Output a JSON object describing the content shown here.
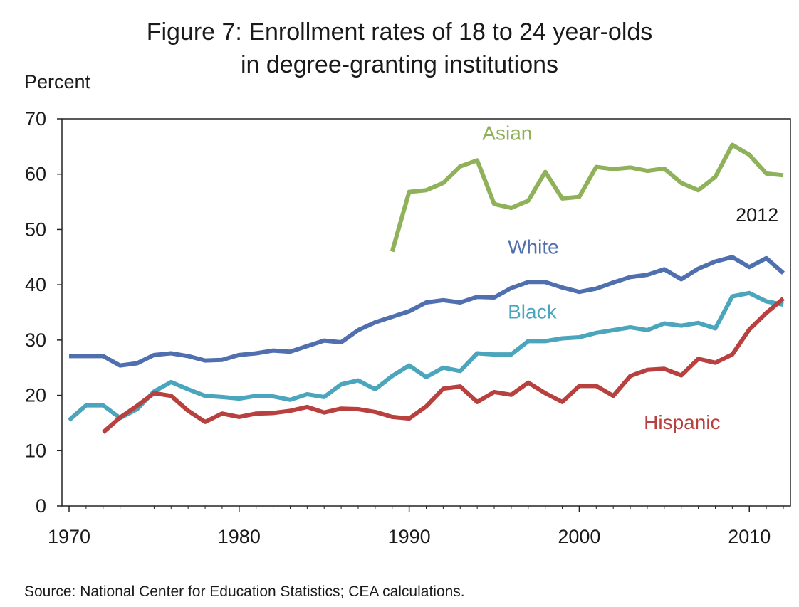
{
  "chart_data": {
    "type": "line",
    "title": "Figure 7: Enrollment rates of 18 to 24 year-olds",
    "title_line2": "in degree-granting institutions",
    "ylabel": "Percent",
    "xlabel": "",
    "ylim": [
      0,
      70
    ],
    "xlim": [
      1970,
      2012
    ],
    "y_ticks": [
      "0",
      "10",
      "20",
      "30",
      "40",
      "50",
      "60",
      "70"
    ],
    "x_ticks": [
      "1970",
      "1980",
      "1990",
      "2000",
      "2010"
    ],
    "grid": false,
    "end_annotation": "2012",
    "source": "Source: National Center for Education Statistics; CEA calculations.",
    "series": [
      {
        "name": "White",
        "color": "#4f6faf",
        "x": [
          1970,
          1971,
          1972,
          1973,
          1974,
          1975,
          1976,
          1977,
          1978,
          1979,
          1980,
          1981,
          1982,
          1983,
          1984,
          1985,
          1986,
          1987,
          1988,
          1989,
          1990,
          1991,
          1992,
          1993,
          1994,
          1995,
          1996,
          1997,
          1998,
          1999,
          2000,
          2001,
          2002,
          2003,
          2004,
          2005,
          2006,
          2007,
          2008,
          2009,
          2010,
          2011,
          2012
        ],
        "values": [
          27.1,
          27.1,
          27.1,
          25.4,
          25.8,
          27.3,
          27.6,
          27.1,
          26.3,
          26.4,
          27.3,
          27.6,
          28.1,
          27.9,
          28.9,
          29.9,
          29.6,
          31.8,
          33.2,
          34.2,
          35.2,
          36.8,
          37.2,
          36.8,
          37.8,
          37.7,
          39.4,
          40.5,
          40.5,
          39.5,
          38.7,
          39.3,
          40.4,
          41.4,
          41.8,
          42.8,
          41.0,
          42.9,
          44.2,
          45.0,
          43.2,
          44.8,
          42.1
        ]
      },
      {
        "name": "Black",
        "color": "#4aa5bd",
        "x": [
          1970,
          1971,
          1972,
          1973,
          1974,
          1975,
          1976,
          1977,
          1978,
          1979,
          1980,
          1981,
          1982,
          1983,
          1984,
          1985,
          1986,
          1987,
          1988,
          1989,
          1990,
          1991,
          1992,
          1993,
          1994,
          1995,
          1996,
          1997,
          1998,
          1999,
          2000,
          2001,
          2002,
          2003,
          2004,
          2005,
          2006,
          2007,
          2008,
          2009,
          2010,
          2011,
          2012
        ],
        "values": [
          15.5,
          18.2,
          18.2,
          15.9,
          17.5,
          20.7,
          22.4,
          21.1,
          19.9,
          19.7,
          19.4,
          19.9,
          19.8,
          19.2,
          20.2,
          19.7,
          22.0,
          22.7,
          21.1,
          23.5,
          25.4,
          23.3,
          25.0,
          24.4,
          27.6,
          27.4,
          27.4,
          29.8,
          29.8,
          30.3,
          30.5,
          31.3,
          31.8,
          32.3,
          31.8,
          33.0,
          32.6,
          33.1,
          32.1,
          37.9,
          38.5,
          37.0,
          36.4
        ]
      },
      {
        "name": "Hispanic",
        "color": "#b8403e",
        "x": [
          1972,
          1973,
          1974,
          1975,
          1976,
          1977,
          1978,
          1979,
          1980,
          1981,
          1982,
          1983,
          1984,
          1985,
          1986,
          1987,
          1988,
          1989,
          1990,
          1991,
          1992,
          1993,
          1994,
          1995,
          1996,
          1997,
          1998,
          1999,
          2000,
          2001,
          2002,
          2003,
          2004,
          2005,
          2006,
          2007,
          2008,
          2009,
          2010,
          2011,
          2012
        ],
        "values": [
          13.3,
          16.0,
          18.1,
          20.4,
          19.9,
          17.2,
          15.2,
          16.7,
          16.1,
          16.7,
          16.8,
          17.2,
          17.9,
          16.9,
          17.6,
          17.5,
          17.0,
          16.1,
          15.8,
          18.0,
          21.2,
          21.6,
          18.8,
          20.6,
          20.1,
          22.3,
          20.4,
          18.8,
          21.7,
          21.7,
          19.9,
          23.5,
          24.6,
          24.8,
          23.6,
          26.6,
          25.9,
          27.4,
          31.9,
          34.9,
          37.5
        ]
      },
      {
        "name": "Asian",
        "color": "#8fb15a",
        "x": [
          1989,
          1990,
          1991,
          1992,
          1993,
          1994,
          1995,
          1996,
          1997,
          1998,
          1999,
          2000,
          2001,
          2002,
          2003,
          2004,
          2005,
          2006,
          2007,
          2008,
          2009,
          2010,
          2011,
          2012
        ],
        "values": [
          46.0,
          56.8,
          57.1,
          58.4,
          61.4,
          62.5,
          54.6,
          53.9,
          55.2,
          60.4,
          55.6,
          55.9,
          61.3,
          60.9,
          61.2,
          60.6,
          61.0,
          58.4,
          57.1,
          59.5,
          65.3,
          63.5,
          60.1,
          59.8
        ]
      }
    ]
  }
}
